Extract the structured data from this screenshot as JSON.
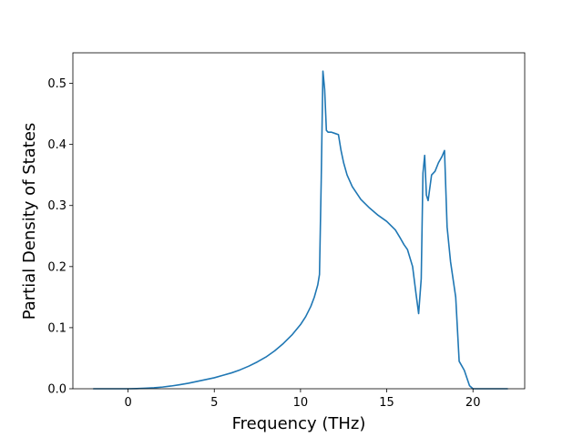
{
  "chart_data": {
    "type": "line",
    "title": "",
    "xlabel": "Frequency (THz)",
    "ylabel": "Partial Density of States",
    "xlim": [
      -3.2,
      23.0
    ],
    "ylim": [
      0.0,
      0.55
    ],
    "xticks": [
      0,
      5,
      10,
      15,
      20
    ],
    "yticks": [
      0.0,
      0.1,
      0.2,
      0.3,
      0.4,
      0.5
    ],
    "xtick_labels": [
      "0",
      "5",
      "10",
      "15",
      "20"
    ],
    "ytick_labels": [
      "0.0",
      "0.1",
      "0.2",
      "0.3",
      "0.4",
      "0.5"
    ],
    "grid": false,
    "legend": false,
    "series": [
      {
        "color": "#1f77b4",
        "x": [
          -2.0,
          -1.0,
          0.0,
          0.5,
          1.0,
          1.5,
          2.0,
          2.5,
          3.0,
          3.5,
          4.0,
          4.5,
          5.0,
          5.5,
          6.0,
          6.5,
          7.0,
          7.5,
          8.0,
          8.5,
          9.0,
          9.5,
          10.0,
          10.3,
          10.6,
          10.8,
          11.0,
          11.1,
          11.2,
          11.3,
          11.4,
          11.5,
          11.6,
          11.8,
          12.0,
          12.2,
          12.35,
          12.5,
          12.7,
          13.0,
          13.5,
          14.0,
          14.5,
          15.0,
          15.5,
          15.8,
          16.0,
          16.2,
          16.5,
          16.7,
          16.85,
          17.0,
          17.1,
          17.2,
          17.3,
          17.4,
          17.6,
          17.8,
          18.0,
          18.2,
          18.35,
          18.5,
          18.7,
          19.0,
          19.2,
          19.5,
          19.8,
          20.0,
          21.0,
          22.0
        ],
        "y": [
          0.0,
          0.0,
          0.0,
          0.0003,
          0.0008,
          0.0016,
          0.0028,
          0.0045,
          0.0066,
          0.009,
          0.012,
          0.015,
          0.018,
          0.022,
          0.026,
          0.031,
          0.037,
          0.044,
          0.052,
          0.062,
          0.074,
          0.088,
          0.105,
          0.118,
          0.135,
          0.15,
          0.17,
          0.187,
          0.34,
          0.52,
          0.49,
          0.423,
          0.42,
          0.42,
          0.418,
          0.416,
          0.39,
          0.37,
          0.35,
          0.331,
          0.31,
          0.296,
          0.284,
          0.274,
          0.26,
          0.246,
          0.236,
          0.228,
          0.2,
          0.155,
          0.123,
          0.18,
          0.353,
          0.382,
          0.317,
          0.308,
          0.35,
          0.356,
          0.37,
          0.38,
          0.39,
          0.265,
          0.208,
          0.15,
          0.045,
          0.03,
          0.005,
          0.0,
          0.0,
          0.0
        ]
      }
    ]
  }
}
